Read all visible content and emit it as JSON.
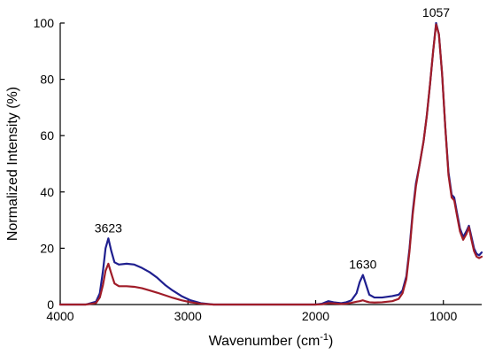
{
  "chart_data": {
    "type": "line",
    "title": "",
    "xlabel_main": "Wavenumber (cm",
    "xlabel_sup": "-1",
    "xlabel_close": ")",
    "ylabel": "Normalized Intensity (%)",
    "xlim": [
      4000,
      700
    ],
    "ylim": [
      0,
      100
    ],
    "x_reversed": true,
    "xticks": [
      "4000",
      "3000",
      "2000",
      "1000"
    ],
    "yticks": [
      "0",
      "20",
      "40",
      "60",
      "80",
      "100"
    ],
    "grid": false,
    "colors": {
      "blue": "#1f1f8f",
      "red": "#a01c28"
    },
    "annotations": [
      {
        "text": "3623",
        "x": 3623,
        "y": 23.5
      },
      {
        "text": "1630",
        "x": 1630,
        "y": 10.5
      },
      {
        "text": "1057",
        "x": 1057,
        "y": 100
      }
    ],
    "series": [
      {
        "color": "#1f1f8f",
        "points": [
          [
            4000,
            0
          ],
          [
            3800,
            0
          ],
          [
            3720,
            1
          ],
          [
            3690,
            4
          ],
          [
            3665,
            12
          ],
          [
            3645,
            20
          ],
          [
            3623,
            23.5
          ],
          [
            3600,
            19
          ],
          [
            3575,
            15
          ],
          [
            3540,
            14.2
          ],
          [
            3480,
            14.5
          ],
          [
            3420,
            14.2
          ],
          [
            3360,
            13
          ],
          [
            3300,
            11.5
          ],
          [
            3240,
            9.5
          ],
          [
            3180,
            7
          ],
          [
            3120,
            5
          ],
          [
            3050,
            3
          ],
          [
            2980,
            1.5
          ],
          [
            2900,
            0.5
          ],
          [
            2800,
            0
          ],
          [
            2000,
            0
          ],
          [
            1950,
            0.3
          ],
          [
            1900,
            1.2
          ],
          [
            1860,
            0.8
          ],
          [
            1800,
            0.5
          ],
          [
            1760,
            0.8
          ],
          [
            1720,
            1.5
          ],
          [
            1680,
            4
          ],
          [
            1655,
            8
          ],
          [
            1630,
            10.5
          ],
          [
            1605,
            7
          ],
          [
            1580,
            3.5
          ],
          [
            1540,
            2.5
          ],
          [
            1480,
            2.5
          ],
          [
            1400,
            3
          ],
          [
            1350,
            3.5
          ],
          [
            1320,
            5
          ],
          [
            1290,
            10
          ],
          [
            1265,
            20
          ],
          [
            1240,
            33
          ],
          [
            1215,
            43
          ],
          [
            1185,
            50
          ],
          [
            1155,
            58
          ],
          [
            1130,
            67
          ],
          [
            1105,
            78
          ],
          [
            1080,
            90
          ],
          [
            1057,
            100
          ],
          [
            1035,
            96
          ],
          [
            1010,
            82
          ],
          [
            985,
            63
          ],
          [
            960,
            47
          ],
          [
            935,
            39
          ],
          [
            915,
            38
          ],
          [
            895,
            33
          ],
          [
            870,
            27
          ],
          [
            845,
            24
          ],
          [
            820,
            26
          ],
          [
            800,
            28
          ],
          [
            780,
            24
          ],
          [
            760,
            20
          ],
          [
            740,
            18
          ],
          [
            720,
            17.5
          ],
          [
            700,
            18.5
          ]
        ]
      },
      {
        "color": "#a01c28",
        "points": [
          [
            4000,
            0
          ],
          [
            3800,
            0
          ],
          [
            3720,
            0.5
          ],
          [
            3690,
            2.5
          ],
          [
            3665,
            7
          ],
          [
            3645,
            12
          ],
          [
            3623,
            14.5
          ],
          [
            3600,
            11
          ],
          [
            3575,
            7.5
          ],
          [
            3540,
            6.5
          ],
          [
            3480,
            6.5
          ],
          [
            3420,
            6.3
          ],
          [
            3360,
            5.8
          ],
          [
            3300,
            5
          ],
          [
            3240,
            4.2
          ],
          [
            3180,
            3.3
          ],
          [
            3120,
            2.4
          ],
          [
            3050,
            1.5
          ],
          [
            2980,
            0.8
          ],
          [
            2900,
            0.3
          ],
          [
            2800,
            0
          ],
          [
            2000,
            0
          ],
          [
            1950,
            0.1
          ],
          [
            1900,
            0.5
          ],
          [
            1860,
            0.4
          ],
          [
            1800,
            0.2
          ],
          [
            1760,
            0.3
          ],
          [
            1720,
            0.6
          ],
          [
            1680,
            1
          ],
          [
            1655,
            1.2
          ],
          [
            1630,
            1.5
          ],
          [
            1605,
            1.1
          ],
          [
            1580,
            0.8
          ],
          [
            1540,
            0.7
          ],
          [
            1480,
            0.8
          ],
          [
            1400,
            1.2
          ],
          [
            1350,
            2
          ],
          [
            1320,
            4
          ],
          [
            1290,
            9
          ],
          [
            1265,
            19
          ],
          [
            1240,
            32
          ],
          [
            1215,
            42
          ],
          [
            1185,
            50
          ],
          [
            1155,
            58
          ],
          [
            1130,
            67
          ],
          [
            1105,
            78
          ],
          [
            1080,
            90
          ],
          [
            1057,
            99.5
          ],
          [
            1035,
            96
          ],
          [
            1010,
            82
          ],
          [
            985,
            63
          ],
          [
            960,
            46
          ],
          [
            935,
            38
          ],
          [
            915,
            37
          ],
          [
            895,
            32
          ],
          [
            870,
            26
          ],
          [
            845,
            23
          ],
          [
            820,
            25
          ],
          [
            800,
            27.5
          ],
          [
            780,
            23
          ],
          [
            760,
            19
          ],
          [
            740,
            17
          ],
          [
            720,
            16.5
          ],
          [
            700,
            17
          ]
        ]
      }
    ]
  }
}
